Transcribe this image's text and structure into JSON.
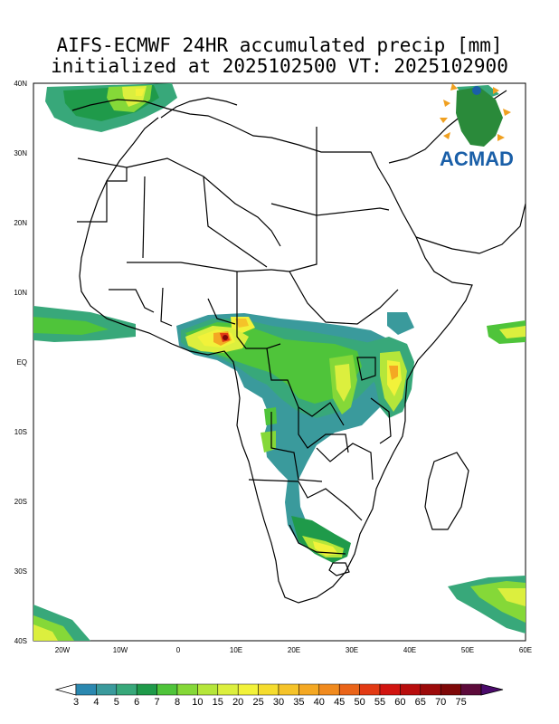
{
  "title": {
    "line1": "AIFS-ECMWF 24HR accumulated precip [mm]",
    "line2": "initialized at 2025102500 VT: 2025102900"
  },
  "logo": {
    "text": "ACMAD"
  },
  "map": {
    "lon_range": [
      -25,
      60
    ],
    "lat_range": [
      -40,
      40
    ],
    "lat_labels": [
      "40N",
      "30N",
      "20N",
      "10N",
      "EQ",
      "10S",
      "20S",
      "30S",
      "40S"
    ],
    "lon_labels": [
      "20W",
      "10W",
      "0",
      "10E",
      "20E",
      "30E",
      "40E",
      "50E",
      "60E"
    ]
  },
  "colorbar": {
    "labels": [
      "3",
      "4",
      "5",
      "6",
      "7",
      "8",
      "10",
      "15",
      "20",
      "25",
      "30",
      "35",
      "40",
      "45",
      "50",
      "55",
      "60",
      "65",
      "70",
      "75"
    ],
    "colors": [
      "#2b88b0",
      "#3a9a9c",
      "#38a87a",
      "#1f9a4a",
      "#4fc43a",
      "#85d838",
      "#b5e63a",
      "#dcef3e",
      "#f2f23a",
      "#f5dc2e",
      "#f5c329",
      "#f4a823",
      "#f08a1e",
      "#ea6419",
      "#e23a14",
      "#d11410",
      "#b80d0d",
      "#9c0a0a",
      "#7e0808",
      "#5c0a3a"
    ],
    "over_color": "#4b0b6b"
  }
}
